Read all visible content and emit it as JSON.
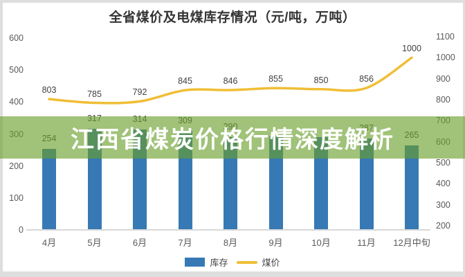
{
  "title": "全省煤价及电煤库存情况（元/吨，万吨）",
  "overlay": {
    "headline": "江西省煤炭价格行情深度解析"
  },
  "legend": {
    "inventory": "库存",
    "price": "煤价"
  },
  "colors": {
    "bar": "#3779B4",
    "line": "#F0BE35",
    "banner": "rgba(104,158,43,0.63)",
    "axis_line": "#d9d9d9"
  },
  "chart_data": {
    "type": "bar+line combo",
    "title": "全省煤价及电煤库存情况（元/吨，万吨）",
    "categories": [
      "4月",
      "5月",
      "6月",
      "7月",
      "8月",
      "9月",
      "10月",
      "11月",
      "12月中旬"
    ],
    "series": [
      {
        "name": "库存",
        "type": "bar",
        "axis": "left",
        "values": [
          254,
          317,
          314,
          309,
          290,
          292,
          291,
          287,
          265
        ],
        "labels": [
          "254",
          "317",
          "314",
          "309",
          "290",
          "",
          "",
          "287",
          "265"
        ]
      },
      {
        "name": "煤价",
        "type": "line",
        "axis": "right",
        "values": [
          803,
          785,
          792,
          845,
          846,
          855,
          850,
          856,
          1000
        ],
        "labels": [
          "803",
          "785",
          "792",
          "845",
          "846",
          "855",
          "850",
          "856",
          "1000"
        ]
      }
    ],
    "left_axis": {
      "min": 0,
      "max": 600,
      "ticks": [
        0,
        100,
        200,
        300,
        400,
        500,
        600
      ]
    },
    "right_axis": {
      "min": 200,
      "max": 1100,
      "ticks": [
        200,
        300,
        400,
        500,
        600,
        700,
        800,
        900,
        1000,
        1100
      ]
    },
    "grid": false,
    "legend_position": "bottom"
  }
}
